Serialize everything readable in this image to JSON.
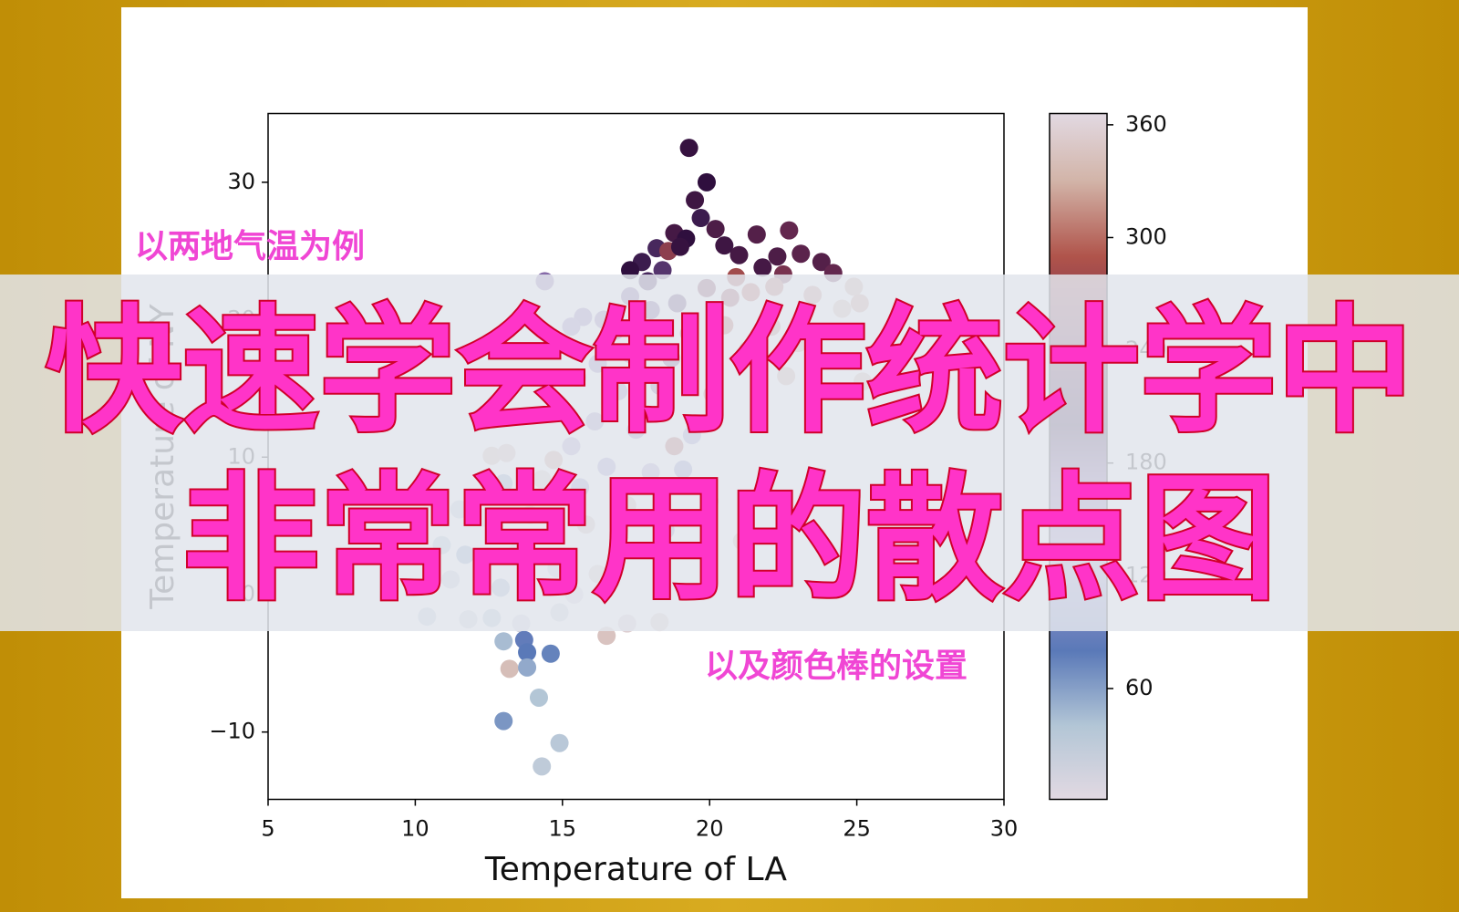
{
  "chart_data": {
    "type": "scatter",
    "xlabel": "Temperature of LA",
    "ylabel": "Temperature of NY",
    "xlim": [
      5,
      30
    ],
    "xticks": [
      5,
      10,
      15,
      20,
      25,
      30
    ],
    "ylim": [
      -14.9,
      35
    ],
    "yticks": [
      {
        "value": -10,
        "label": "−10"
      },
      0,
      10,
      20,
      30
    ],
    "clim": [
      1,
      366
    ],
    "cticks": [
      60,
      120,
      180,
      240,
      300,
      360
    ],
    "colormap": [
      [
        1,
        "#e2d9e2"
      ],
      [
        40,
        "#b3c6d6"
      ],
      [
        80,
        "#5a79b8"
      ],
      [
        130,
        "#a79bcd"
      ],
      [
        170,
        "#7b5a9c"
      ],
      [
        200,
        "#2f0f3e"
      ],
      [
        240,
        "#6a2a50"
      ],
      [
        290,
        "#b0544b"
      ],
      [
        330,
        "#d2b4a8"
      ],
      [
        366,
        "#e2d9e2"
      ]
    ],
    "x": [
      19.3,
      19.9,
      19.5,
      19.7,
      18.8,
      19.2,
      20.2,
      21.6,
      22.7,
      18.2,
      17.7,
      17.3,
      18.6,
      19.0,
      20.5,
      21.0,
      22.3,
      23.1,
      23.8,
      24.2,
      22.5,
      21.8,
      20.9,
      17.9,
      18.4,
      24.9,
      25.1,
      24.5,
      23.5,
      22.2,
      21.4,
      20.7,
      19.9,
      18.9,
      18.0,
      17.3,
      16.4,
      15.7,
      15.3,
      14.4,
      16.8,
      19.3,
      20.5,
      22.1,
      23.0,
      21.3,
      18.7,
      17.3,
      16.2,
      15.5,
      16.9,
      18.3,
      20.1,
      22.6,
      25.2,
      15.0,
      16.1,
      17.5,
      18.8,
      19.4,
      15.3,
      12.6,
      13.1,
      14.7,
      16.5,
      18.0,
      19.1,
      13.0,
      14.3,
      15.6,
      17.2,
      20.0,
      11.5,
      12.3,
      13.9,
      15.8,
      18.5,
      21.1,
      10.9,
      11.7,
      13.5,
      14.8,
      16.2,
      11.2,
      12.9,
      15.4,
      10.4,
      11.8,
      12.6,
      13.6,
      14.9,
      16.5,
      17.2,
      18.3,
      13.0,
      13.7,
      13.8,
      14.6,
      13.2,
      13.8,
      14.2,
      13.0,
      14.9,
      14.3
    ],
    "y": [
      32.5,
      30.0,
      28.7,
      27.4,
      26.3,
      25.9,
      26.6,
      26.2,
      26.5,
      25.2,
      24.2,
      23.6,
      25.0,
      25.3,
      25.4,
      24.7,
      24.6,
      24.8,
      24.2,
      23.4,
      23.3,
      23.8,
      23.1,
      22.8,
      23.6,
      22.4,
      21.2,
      20.8,
      21.8,
      22.4,
      22.0,
      21.6,
      22.3,
      21.2,
      20.7,
      21.7,
      20.0,
      20.2,
      19.5,
      22.8,
      19.2,
      19.0,
      19.6,
      19.5,
      18.3,
      17.8,
      17.2,
      17.5,
      16.8,
      15.8,
      14.8,
      15.2,
      14.6,
      15.9,
      15.5,
      13.5,
      12.6,
      12.0,
      10.8,
      11.6,
      10.8,
      10.1,
      10.3,
      9.8,
      9.3,
      8.9,
      9.1,
      8.1,
      8.4,
      7.8,
      6.5,
      6.8,
      6.2,
      5.6,
      5.8,
      5.1,
      4.7,
      3.9,
      3.6,
      2.9,
      3.2,
      1.9,
      1.5,
      1.1,
      0.5,
      0.0,
      -1.6,
      -1.8,
      -1.7,
      -2.1,
      -1.3,
      -3.0,
      -2.1,
      -2.0,
      -3.4,
      -3.3,
      -4.2,
      -4.3,
      -5.4,
      -5.3,
      -7.5,
      -9.2,
      -10.8,
      -12.5
    ],
    "c": [
      205,
      200,
      210,
      195,
      215,
      200,
      220,
      225,
      235,
      190,
      195,
      200,
      265,
      205,
      210,
      215,
      220,
      230,
      225,
      235,
      250,
      215,
      280,
      190,
      185,
      325,
      320,
      330,
      315,
      300,
      295,
      270,
      250,
      185,
      175,
      170,
      155,
      150,
      145,
      160,
      165,
      240,
      290,
      310,
      320,
      300,
      180,
      160,
      150,
      140,
      145,
      170,
      300,
      325,
      330,
      135,
      140,
      150,
      285,
      120,
      130,
      330,
      335,
      320,
      125,
      130,
      110,
      60,
      350,
      120,
      330,
      340,
      30,
      20,
      355,
      340,
      115,
      330,
      40,
      60,
      25,
      15,
      350,
      25,
      50,
      10,
      30,
      20,
      40,
      15,
      20,
      345,
      355,
      350,
      45,
      85,
      80,
      75,
      340,
      55,
      40,
      65,
      35,
      30
    ],
    "title_lines": [
      "快速学会制作统计学中",
      "非常常用的散点图"
    ],
    "annotations": [
      "以两地气温为例",
      "以及颜色棒的设置"
    ]
  }
}
